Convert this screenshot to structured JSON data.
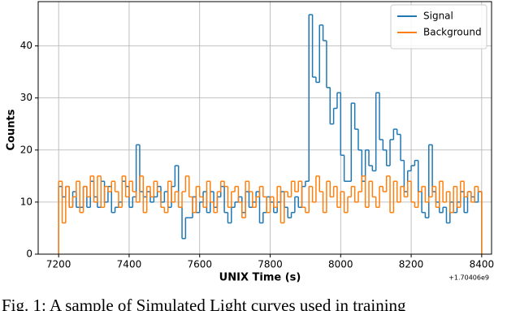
{
  "chart_data": {
    "type": "step-histogram",
    "xlabel": "UNIX Time (s)",
    "ylabel": "Counts",
    "x_offset_label": "+1.70406e9",
    "caption": "Fig. 1: A sample of Simulated Light curves used in training",
    "bins": [
      7200,
      7210,
      7220,
      7230,
      7240,
      7250,
      7260,
      7270,
      7280,
      7290,
      7300,
      7310,
      7320,
      7330,
      7340,
      7350,
      7360,
      7370,
      7380,
      7390,
      7400,
      7410,
      7420,
      7430,
      7440,
      7450,
      7460,
      7470,
      7480,
      7490,
      7500,
      7510,
      7520,
      7530,
      7540,
      7550,
      7560,
      7570,
      7580,
      7590,
      7600,
      7610,
      7620,
      7630,
      7640,
      7650,
      7660,
      7670,
      7680,
      7690,
      7700,
      7710,
      7720,
      7730,
      7740,
      7750,
      7760,
      7770,
      7780,
      7790,
      7800,
      7810,
      7820,
      7830,
      7840,
      7850,
      7860,
      7870,
      7880,
      7890,
      7900,
      7910,
      7920,
      7930,
      7940,
      7950,
      7960,
      7970,
      7980,
      7990,
      8000,
      8010,
      8020,
      8030,
      8040,
      8050,
      8060,
      8070,
      8080,
      8090,
      8100,
      8110,
      8120,
      8130,
      8140,
      8150,
      8160,
      8170,
      8180,
      8190,
      8200,
      8210,
      8220,
      8230,
      8240,
      8250,
      8260,
      8270,
      8280,
      8290,
      8300,
      8310,
      8320,
      8330,
      8340,
      8350,
      8360,
      8370,
      8380,
      8390,
      8400
    ],
    "series": [
      {
        "name": "Signal",
        "color": "#1f77b4",
        "values": [
          13,
          11,
          13,
          9,
          12,
          9,
          9,
          13,
          9,
          14,
          11,
          9,
          14,
          10,
          13,
          8,
          9,
          10,
          14,
          13,
          9,
          11,
          21,
          12,
          11,
          12,
          10,
          11,
          13,
          10,
          12,
          9,
          13,
          17,
          9,
          3,
          7,
          7,
          11,
          8,
          10,
          12,
          8,
          12,
          9,
          11,
          13,
          8,
          6,
          9,
          10,
          11,
          8,
          12,
          9,
          10,
          12,
          6,
          8,
          11,
          10,
          8,
          10,
          12,
          9,
          7,
          8,
          11,
          9,
          13,
          14,
          46,
          34,
          33,
          44,
          41,
          32,
          25,
          28,
          31,
          19,
          14,
          14,
          29,
          24,
          20,
          14,
          20,
          17,
          16,
          31,
          22,
          20,
          17,
          22,
          24,
          23,
          18,
          12,
          16,
          17,
          18,
          12,
          8,
          7,
          21,
          12,
          10,
          8,
          9,
          6,
          10,
          8,
          10,
          12,
          8,
          12,
          11,
          10,
          12
        ]
      },
      {
        "name": "Background",
        "color": "#ff7f0e",
        "values": [
          14,
          6,
          13,
          9,
          11,
          14,
          8,
          13,
          11,
          15,
          10,
          15,
          9,
          13,
          12,
          14,
          12,
          9,
          15,
          11,
          14,
          12,
          10,
          15,
          8,
          13,
          11,
          14,
          12,
          9,
          8,
          14,
          10,
          12,
          9,
          12,
          15,
          11,
          8,
          13,
          11,
          9,
          14,
          10,
          8,
          12,
          14,
          13,
          9,
          12,
          13,
          10,
          7,
          14,
          12,
          9,
          11,
          13,
          11,
          8,
          11,
          9,
          13,
          6,
          12,
          11,
          14,
          12,
          14,
          9,
          8,
          13,
          10,
          15,
          12,
          8,
          14,
          11,
          13,
          9,
          12,
          8,
          11,
          13,
          10,
          12,
          15,
          9,
          14,
          11,
          9,
          13,
          12,
          15,
          8,
          14,
          10,
          13,
          11,
          14,
          10,
          9,
          12,
          13,
          10,
          11,
          13,
          9,
          14,
          10,
          12,
          8,
          13,
          9,
          14,
          11,
          12,
          10,
          13,
          12
        ]
      }
    ],
    "xlim": [
      7142,
      8428
    ],
    "ylim": [
      0,
      48.5
    ],
    "xticks": [
      7200,
      7400,
      7600,
      7800,
      8000,
      8200,
      8400
    ],
    "yticks": [
      0,
      10,
      20,
      30,
      40
    ],
    "grid": true,
    "legend": "upper right"
  }
}
